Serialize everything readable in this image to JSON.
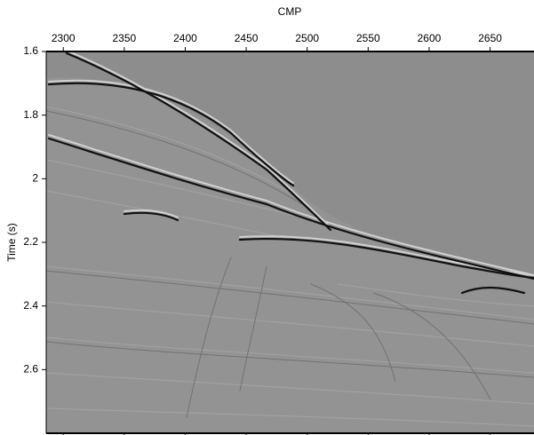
{
  "chart_data": {
    "type": "seismic",
    "x_label": "CMP",
    "y_label": "Time (s)",
    "xlim": [
      2286,
      2686
    ],
    "xticks": [
      2300,
      2350,
      2400,
      2450,
      2500,
      2550,
      2600,
      2650
    ],
    "ylim": [
      1.6,
      2.8
    ],
    "yticks": [
      1.6,
      1.8,
      2,
      2.2,
      2.4,
      2.6
    ],
    "y_inverted": true,
    "x_axis_position": "top"
  }
}
